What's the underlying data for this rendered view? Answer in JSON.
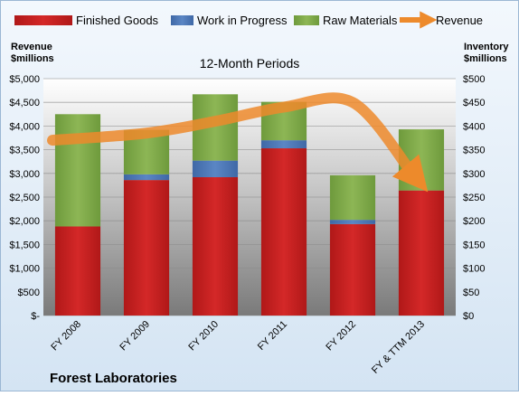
{
  "chart_data": {
    "type": "bar",
    "stacked": true,
    "title": "12-Month Periods",
    "footer_title": "Forest Laboratories",
    "categories": [
      "FY 2008",
      "FY 2009",
      "FY 2010",
      "FY 2011",
      "FY 2012",
      "FY & TTM 2013"
    ],
    "series": [
      {
        "name": "Finished Goods",
        "color": "#cc2020",
        "axis": "right",
        "values": [
          188,
          286,
          292,
          353,
          193,
          264
        ]
      },
      {
        "name": "Work in Progress",
        "color": "#4f7ab8",
        "axis": "right",
        "values": [
          0,
          12,
          35,
          17,
          9,
          0
        ]
      },
      {
        "name": "Raw Materials",
        "color": "#7fa84a",
        "axis": "right",
        "values": [
          237,
          94,
          140,
          81,
          94,
          129
        ]
      }
    ],
    "revenue_series": {
      "name": "Revenue",
      "color": "#ed8a2b",
      "axis": "left",
      "style": "curved-arrow",
      "values": [
        3700,
        3850,
        4100,
        4400,
        4500,
        3000
      ]
    },
    "left_axis": {
      "title_line1": "Revenue",
      "title_line2": "$millions",
      "ylim": [
        0,
        5000
      ],
      "ticks": [
        "$5,000",
        "$4,500",
        "$4,000",
        "$3,500",
        "$3,000",
        "$2,500",
        "$2,000",
        "$1,500",
        "$1,000",
        "$500",
        "$-"
      ]
    },
    "right_axis": {
      "title_line1": "Inventory",
      "title_line2": "$millions",
      "ylim": [
        0,
        500
      ],
      "ticks": [
        "$500",
        "$450",
        "$400",
        "$350",
        "$300",
        "$250",
        "$200",
        "$150",
        "$100",
        "$50",
        "$0"
      ]
    },
    "legend_position": "top",
    "grid": true
  }
}
